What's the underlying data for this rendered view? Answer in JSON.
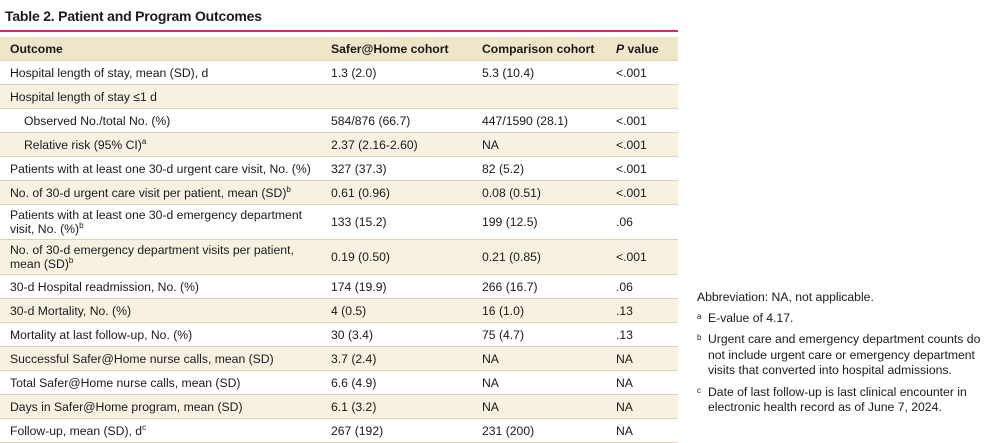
{
  "title": "Table 2. Patient and Program Outcomes",
  "header": {
    "outcome": "Outcome",
    "safer": "Safer@Home cohort",
    "comparison": "Comparison cohort",
    "p_letter": "P",
    "p_word": " value"
  },
  "rows": [
    {
      "label": "Hospital length of stay, mean (SD), d",
      "sup": "",
      "safer": "1.3 (2.0)",
      "comp": "5.3 (10.4)",
      "p": "<.001"
    },
    {
      "label": "Hospital length of stay ≤1 d",
      "sup": "",
      "safer": "",
      "comp": "",
      "p": ""
    },
    {
      "label": "Observed No./total No. (%)",
      "sup": "",
      "safer": "584/876 (66.7)",
      "comp": "447/1590 (28.1)",
      "p": "<.001"
    },
    {
      "label": "Relative risk (95% CI)",
      "sup": "a",
      "safer": "2.37 (2.16-2.60)",
      "comp": "NA",
      "p": "<.001"
    },
    {
      "label": "Patients with at least one 30-d urgent care visit, No. (%)",
      "sup": "",
      "safer": "327 (37.3)",
      "comp": "82 (5.2)",
      "p": "<.001"
    },
    {
      "label": "No. of 30-d urgent care visit per patient, mean (SD)",
      "sup": "b",
      "safer": "0.61 (0.96)",
      "comp": "0.08 (0.51)",
      "p": "<.001"
    },
    {
      "label": "Patients with at least one 30-d emergency department visit, No. (%)",
      "sup": "b",
      "safer": "133 (15.2)",
      "comp": "199 (12.5)",
      "p": ".06"
    },
    {
      "label": "No. of 30-d emergency department visits per patient, mean (SD)",
      "sup": "b",
      "safer": "0.19 (0.50)",
      "comp": "0.21 (0.85)",
      "p": "<.001"
    },
    {
      "label": "30-d Hospital readmission, No. (%)",
      "sup": "",
      "safer": "174 (19.9)",
      "comp": "266 (16.7)",
      "p": ".06"
    },
    {
      "label": "30-d Mortality, No. (%)",
      "sup": "",
      "safer": "4 (0.5)",
      "comp": "16 (1.0)",
      "p": ".13"
    },
    {
      "label": "Mortality at last follow-up, No. (%)",
      "sup": "",
      "safer": "30 (3.4)",
      "comp": "75 (4.7)",
      "p": ".13"
    },
    {
      "label": "Successful Safer@Home nurse calls, mean (SD)",
      "sup": "",
      "safer": "3.7 (2.4)",
      "comp": "NA",
      "p": "NA"
    },
    {
      "label": "Total Safer@Home nurse calls, mean (SD)",
      "sup": "",
      "safer": "6.6 (4.9)",
      "comp": "NA",
      "p": "NA"
    },
    {
      "label": "Days in Safer@Home program, mean (SD)",
      "sup": "",
      "safer": "6.1 (3.2)",
      "comp": "NA",
      "p": "NA"
    },
    {
      "label": "Follow-up, mean (SD), d",
      "sup": "c",
      "safer": "267 (192)",
      "comp": "231 (200)",
      "p": "NA"
    }
  ],
  "footnotes": {
    "abbrev": "Abbreviation: NA, not applicable.",
    "items": [
      {
        "mark": "a",
        "text": "E-value of 4.17."
      },
      {
        "mark": "b",
        "text": "Urgent care and emergency department counts do not include urgent care or emergency department visits that converted into hospital admissions."
      },
      {
        "mark": "c",
        "text": "Date of last follow-up is last clinical encounter in electronic health record as of June 7, 2024."
      }
    ]
  },
  "colors": {
    "accent_rule": "#e0265e",
    "header_bg": "#efe5c8",
    "stripe_bg": "#f7f1e2"
  }
}
